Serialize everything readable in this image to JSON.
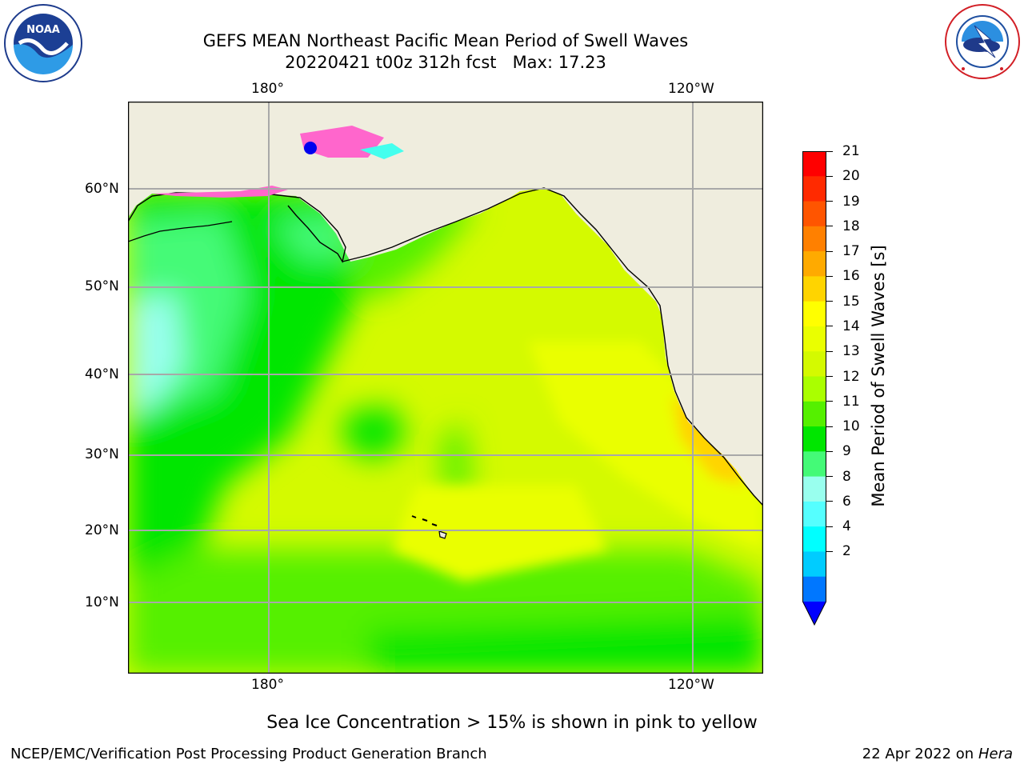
{
  "title": {
    "line1": "GEFS MEAN Northeast Pacific Mean Period of Swell Waves",
    "line2": "20220421 t00z 312h fcst   Max: 17.23"
  },
  "logos": {
    "left": {
      "text": "NOAA",
      "ring_text": "NATIONAL OCEANIC AND ATMOSPHERIC ADMINISTRATION · U.S. DEPARTMENT OF COMMERCE",
      "icon": "noaa-logo"
    },
    "right": {
      "ring_text": "NATIONAL WEATHER SERVICE",
      "icon": "nws-logo"
    }
  },
  "map": {
    "lon_labels": [
      "180°",
      "120°W"
    ],
    "lat_labels": [
      "60°N",
      "50°N",
      "40°N",
      "30°N",
      "20°N",
      "10°N"
    ],
    "ocean_color": "#d4fa00",
    "land_color": "#efedde"
  },
  "colorbar": {
    "label": "Mean Period of Swell Waves [s]",
    "ticks": [
      "21",
      "20",
      "19",
      "18",
      "17",
      "16",
      "15",
      "14",
      "13",
      "12",
      "11",
      "10",
      "9",
      "8",
      "6",
      "4",
      "2"
    ],
    "colors": [
      "#ff0000",
      "#ff2a00",
      "#ff5500",
      "#ff8000",
      "#ffaa00",
      "#ffd400",
      "#ffff00",
      "#eaff00",
      "#d4fa00",
      "#aaff00",
      "#55f000",
      "#00e600",
      "#44fa77",
      "#99ffee",
      "#55ffff",
      "#00ffff",
      "#00ccff",
      "#0077ff"
    ],
    "under_color": "#0000ff"
  },
  "note": "Sea Ice Concentration > 15% is shown in pink to yellow",
  "footer": {
    "left": "NCEP/EMC/Verification Post Processing Product Generation Branch",
    "right_date": "22 Apr 2022 on ",
    "right_host": "Hera"
  }
}
